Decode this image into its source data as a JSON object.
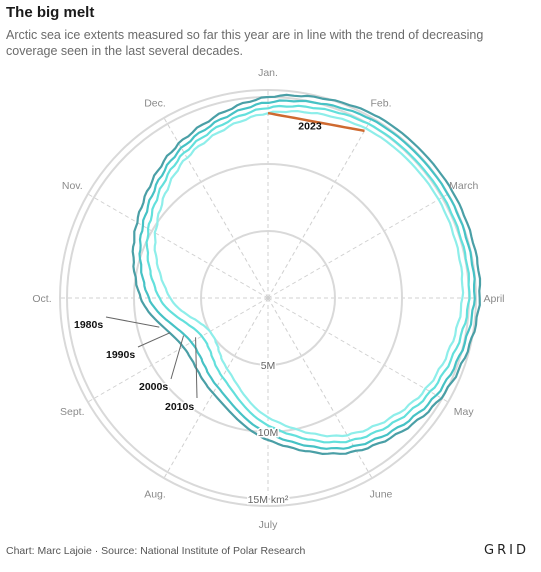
{
  "header": {
    "title": "The big melt",
    "subtitle": "Arctic sea ice extents measured so far this year are in line with the trend of decreasing coverage seen in the last several decades."
  },
  "footer": {
    "source": "Chart: Marc Lajoie · Source: National Institute of Polar Research",
    "brand": "GRID"
  },
  "colors": {
    "grid": "#d9d9d9",
    "spoke": "#d0d0d0",
    "label": "#8a8a8a",
    "s1980s": "#4a9fa6",
    "s1990s": "#46c2c5",
    "s2000s": "#63e0dc",
    "s2010s": "#8eeeea",
    "s2023": "#cf6a30"
  },
  "chart_data": {
    "type": "polar-line",
    "units": "km²",
    "radial_ticks": [
      {
        "value": 5,
        "label": "5M"
      },
      {
        "value": 10,
        "label": "10M"
      },
      {
        "value": 15,
        "label": "15M km²"
      }
    ],
    "months": [
      "Jan.",
      "Feb.",
      "March",
      "April",
      "May",
      "June",
      "July",
      "Aug.",
      "Sept.",
      "Oct.",
      "Nov.",
      "Dec."
    ],
    "series": [
      {
        "name": "1980s",
        "color_key": "s1980s",
        "values": [
          15.0,
          15.8,
          15.9,
          15.8,
          14.9,
          13.2,
          10.6,
          8.2,
          7.3,
          9.5,
          11.3,
          13.3
        ]
      },
      {
        "name": "1990s",
        "color_key": "s1990s",
        "values": [
          14.6,
          15.4,
          15.5,
          15.4,
          14.5,
          12.8,
          10.1,
          7.6,
          6.6,
          8.9,
          10.8,
          12.9
        ]
      },
      {
        "name": "2000s",
        "color_key": "s2000s",
        "values": [
          14.2,
          15.0,
          15.1,
          15.0,
          14.0,
          12.3,
          9.5,
          6.8,
          5.7,
          8.1,
          10.3,
          12.5
        ]
      },
      {
        "name": "2010s",
        "color_key": "s2010s",
        "values": [
          13.8,
          14.6,
          14.7,
          14.5,
          13.6,
          11.8,
          8.9,
          6.1,
          5.0,
          7.3,
          9.7,
          12.1
        ]
      },
      {
        "name": "2023",
        "color_key": "s2023",
        "values": [
          13.8,
          14.4
        ]
      }
    ]
  }
}
